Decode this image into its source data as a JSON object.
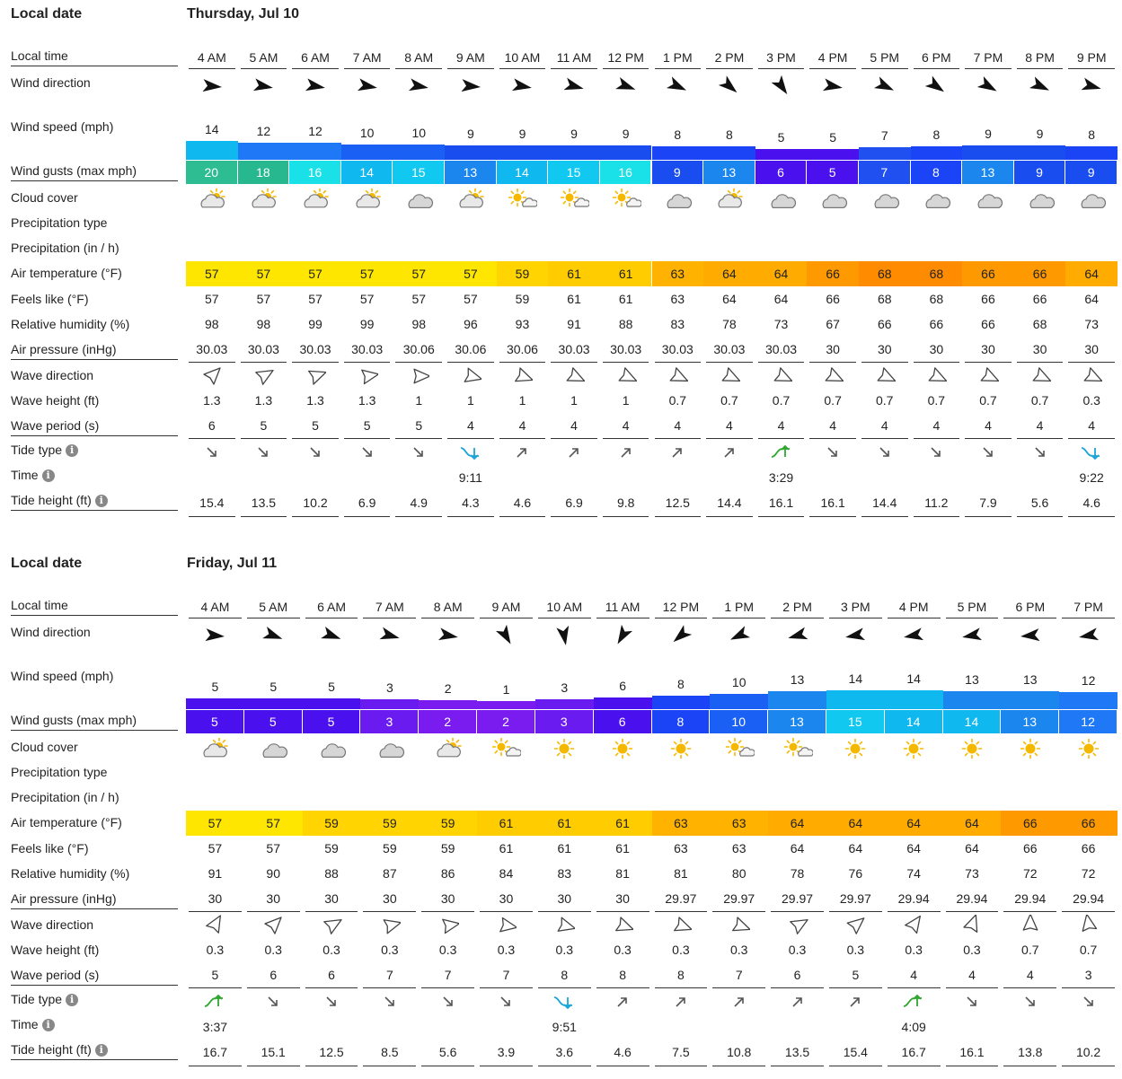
{
  "labels": {
    "local_date": "Local date",
    "local_time": "Local time",
    "wind_direction": "Wind direction",
    "wind_speed": "Wind speed (mph)",
    "wind_gusts": "Wind gusts (max mph)",
    "cloud_cover": "Cloud cover",
    "precip_type": "Precipitation type",
    "precip": "Precipitation (in / h)",
    "air_temp": "Air temperature (°F)",
    "feels_like": "Feels like (°F)",
    "humidity": "Relative humidity (%)",
    "pressure": "Air pressure (inHg)",
    "wave_direction": "Wave direction",
    "wave_height": "Wave height (ft)",
    "wave_period": "Wave period (s)",
    "tide_type": "Tide type",
    "time": "Time",
    "tide_height": "Tide height (ft)",
    "info_glyph": "i"
  },
  "days": [
    {
      "date": "Thursday, Jul 10",
      "hours": [
        "4 AM",
        "5 AM",
        "6 AM",
        "7 AM",
        "8 AM",
        "9 AM",
        "10 AM",
        "11 AM",
        "12 PM",
        "1 PM",
        "2 PM",
        "3 PM",
        "4 PM",
        "5 PM",
        "6 PM",
        "7 PM",
        "8 PM",
        "9 PM"
      ],
      "wind_dir_deg": [
        95,
        100,
        100,
        100,
        100,
        95,
        100,
        105,
        110,
        115,
        130,
        145,
        100,
        115,
        125,
        120,
        115,
        105
      ],
      "wind_speed": [
        14,
        12,
        12,
        10,
        10,
        9,
        9,
        9,
        9,
        8,
        8,
        5,
        5,
        7,
        8,
        9,
        9,
        8
      ],
      "wind_gusts": [
        20,
        18,
        16,
        14,
        15,
        13,
        14,
        15,
        16,
        9,
        13,
        6,
        5,
        7,
        8,
        13,
        9,
        9
      ],
      "cloud": [
        "partly",
        "partly",
        "partly",
        "partly",
        "cloudy",
        "partly",
        "sunny-cloud",
        "sunny-cloud",
        "sunny-cloud",
        "cloudy",
        "partly",
        "cloudy",
        "cloudy",
        "cloudy",
        "cloudy",
        "cloudy",
        "cloudy",
        "cloudy"
      ],
      "air_temp": [
        57,
        57,
        57,
        57,
        57,
        57,
        59,
        61,
        61,
        63,
        64,
        64,
        66,
        68,
        68,
        66,
        66,
        64
      ],
      "feels_like": [
        57,
        57,
        57,
        57,
        57,
        57,
        59,
        61,
        61,
        63,
        64,
        64,
        66,
        68,
        68,
        66,
        66,
        64
      ],
      "humidity": [
        98,
        98,
        99,
        99,
        98,
        96,
        93,
        91,
        88,
        83,
        78,
        73,
        67,
        66,
        66,
        66,
        68,
        73
      ],
      "pressure": [
        "30.03",
        "30.03",
        "30.03",
        "30.03",
        "30.06",
        "30.06",
        "30.06",
        "30.03",
        "30.03",
        "30.03",
        "30.03",
        "30.03",
        "30",
        "30",
        "30",
        "30",
        "30",
        "30"
      ],
      "wave_dir_deg": [
        -45,
        -30,
        -20,
        -10,
        0,
        15,
        20,
        25,
        25,
        25,
        25,
        25,
        25,
        25,
        25,
        25,
        25,
        25
      ],
      "wave_height": [
        "1.3",
        "1.3",
        "1.3",
        "1.3",
        "1",
        "1",
        "1",
        "1",
        "1",
        "0.7",
        "0.7",
        "0.7",
        "0.7",
        "0.7",
        "0.7",
        "0.7",
        "0.7",
        "0.3"
      ],
      "wave_period": [
        6,
        5,
        5,
        5,
        5,
        4,
        4,
        4,
        4,
        4,
        4,
        4,
        4,
        4,
        4,
        4,
        4,
        4
      ],
      "tide_type": [
        "down",
        "down",
        "down",
        "down",
        "down",
        "low",
        "up",
        "up",
        "up",
        "up",
        "up",
        "high",
        "down",
        "down",
        "down",
        "down",
        "down",
        "low"
      ],
      "tide_time": [
        "",
        "",
        "",
        "",
        "",
        "9:11",
        "",
        "",
        "",
        "",
        "",
        "3:29",
        "",
        "",
        "",
        "",
        "",
        "9:22"
      ],
      "tide_height": [
        "15.4",
        "13.5",
        "10.2",
        "6.9",
        "4.9",
        "4.3",
        "4.6",
        "6.9",
        "9.8",
        "12.5",
        "14.4",
        "16.1",
        "16.1",
        "14.4",
        "11.2",
        "7.9",
        "5.6",
        "4.6"
      ]
    },
    {
      "date": "Friday, Jul 11",
      "hours": [
        "4 AM",
        "5 AM",
        "6 AM",
        "7 AM",
        "8 AM",
        "9 AM",
        "10 AM",
        "11 AM",
        "12 PM",
        "1 PM",
        "2 PM",
        "3 PM",
        "4 PM",
        "5 PM",
        "6 PM",
        "7 PM"
      ],
      "wind_dir_deg": [
        95,
        110,
        110,
        105,
        100,
        150,
        170,
        210,
        230,
        245,
        255,
        260,
        260,
        260,
        265,
        260
      ],
      "wind_speed": [
        5,
        5,
        5,
        3,
        2,
        1,
        3,
        6,
        8,
        10,
        13,
        14,
        14,
        13,
        13,
        12
      ],
      "wind_gusts": [
        5,
        5,
        5,
        3,
        2,
        2,
        3,
        6,
        8,
        10,
        13,
        15,
        14,
        14,
        13,
        12
      ],
      "cloud": [
        "partly",
        "cloudy",
        "cloudy",
        "cloudy",
        "partly",
        "sunny-cloud",
        "sunny",
        "sunny",
        "sunny",
        "sunny-cloud",
        "sunny-cloud",
        "sunny",
        "sunny",
        "sunny",
        "sunny",
        "sunny"
      ],
      "air_temp": [
        57,
        57,
        59,
        59,
        59,
        61,
        61,
        61,
        63,
        63,
        64,
        64,
        64,
        64,
        66,
        66
      ],
      "feels_like": [
        57,
        57,
        59,
        59,
        59,
        61,
        61,
        61,
        63,
        63,
        64,
        64,
        64,
        64,
        66,
        66
      ],
      "humidity": [
        91,
        90,
        88,
        87,
        86,
        84,
        83,
        81,
        81,
        80,
        78,
        76,
        74,
        73,
        72,
        72
      ],
      "pressure": [
        "30",
        "30",
        "30",
        "30",
        "30",
        "30",
        "30",
        "30",
        "29.97",
        "29.97",
        "29.97",
        "29.97",
        "29.94",
        "29.94",
        "29.94",
        "29.94"
      ],
      "wave_dir_deg": [
        -60,
        -45,
        -30,
        -15,
        -10,
        10,
        15,
        20,
        20,
        20,
        -30,
        -40,
        -55,
        -70,
        -90,
        -100
      ],
      "wave_height": [
        "0.3",
        "0.3",
        "0.3",
        "0.3",
        "0.3",
        "0.3",
        "0.3",
        "0.3",
        "0.3",
        "0.3",
        "0.3",
        "0.3",
        "0.3",
        "0.3",
        "0.7",
        "0.7"
      ],
      "wave_period": [
        5,
        6,
        6,
        7,
        7,
        7,
        8,
        8,
        8,
        7,
        6,
        5,
        4,
        4,
        4,
        3
      ],
      "tide_type": [
        "high",
        "down",
        "down",
        "down",
        "down",
        "down",
        "low",
        "up",
        "up",
        "up",
        "up",
        "up",
        "high",
        "down",
        "down",
        "down"
      ],
      "tide_time": [
        "3:37",
        "",
        "",
        "",
        "",
        "",
        "9:51",
        "",
        "",
        "",
        "",
        "",
        "4:09",
        "",
        "",
        ""
      ],
      "tide_height": [
        "16.7",
        "15.1",
        "12.5",
        "8.5",
        "5.6",
        "3.9",
        "3.6",
        "4.6",
        "7.5",
        "10.8",
        "13.5",
        "15.4",
        "16.7",
        "16.1",
        "13.8",
        "10.2"
      ]
    }
  ],
  "colors": {
    "wind_scale": {
      "1": "#7a1cf0",
      "2": "#7a1cf0",
      "3": "#6a1cf0",
      "5": "#4a10ee",
      "6": "#4a10ee",
      "7": "#2050f0",
      "8": "#1a44f5",
      "9": "#1a4df0",
      "10": "#1a60f5",
      "12": "#1f78f5",
      "13": "#1a86ee",
      "14": "#10b8f0",
      "15": "#10c8f0",
      "16": "#1ae0e8",
      "18": "#28b890",
      "20": "#2ebc92"
    },
    "temp_scale": {
      "57": "#ffe600",
      "59": "#ffd400",
      "61": "#ffcc00",
      "63": "#ffb300",
      "64": "#ffab00",
      "66": "#ff9900",
      "68": "#ff8c00"
    }
  }
}
